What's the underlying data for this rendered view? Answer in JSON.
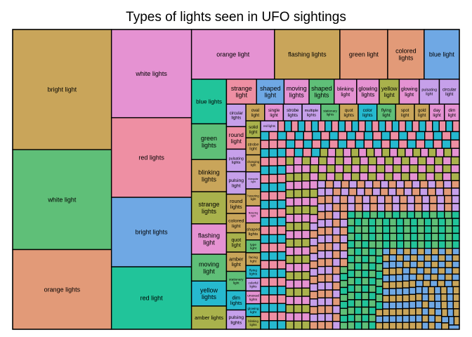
{
  "chart_data": {
    "type": "treemap",
    "title": "Types of lights seen in UFO sightings",
    "palette": {
      "gold": "#c9a55a",
      "green": "#5fbf78",
      "salmon": "#e29a78",
      "pink": "#e592d2",
      "rose": "#ee8fa3",
      "blue": "#6fa8e4",
      "teal": "#21c49a",
      "violet": "#c6a0ea",
      "olive": "#a9b24c",
      "cyan": "#26b9cf"
    },
    "items": [
      {
        "label": "bright light",
        "value": 190,
        "color": "gold"
      },
      {
        "label": "white light",
        "value": 158,
        "color": "green"
      },
      {
        "label": "orange lights",
        "value": 126,
        "color": "salmon"
      },
      {
        "label": "white lights",
        "value": 113,
        "color": "pink"
      },
      {
        "label": "red lights",
        "value": 102,
        "color": "rose"
      },
      {
        "label": "bright lights",
        "value": 89,
        "color": "blue"
      },
      {
        "label": "red light",
        "value": 80,
        "color": "teal"
      },
      {
        "label": "orange light",
        "value": 66,
        "color": "pink"
      },
      {
        "label": "flashing lights",
        "value": 52,
        "color": "gold"
      },
      {
        "label": "green light",
        "value": 38,
        "color": "salmon"
      },
      {
        "label": "blue light",
        "value": 28,
        "color": "blue"
      },
      {
        "label": "colored lights",
        "value": 29,
        "color": "salmon"
      },
      {
        "label": "blue lights",
        "value": 25,
        "color": "teal"
      },
      {
        "label": "green lights",
        "value": 20,
        "color": "green"
      },
      {
        "label": "blinking lights",
        "value": 18,
        "color": "gold"
      },
      {
        "label": "strange lights",
        "value": 18,
        "color": "olive"
      },
      {
        "label": "flashing light",
        "value": 17,
        "color": "pink"
      },
      {
        "label": "moving light",
        "value": 15,
        "color": "green"
      },
      {
        "label": "yellow lights",
        "value": 14,
        "color": "cyan"
      },
      {
        "label": "amber lights",
        "value": 13,
        "color": "olive"
      },
      {
        "label": "strange light",
        "value": 12,
        "color": "rose"
      },
      {
        "label": "shaped light",
        "value": 11,
        "color": "blue"
      },
      {
        "label": "moving lights",
        "value": 10,
        "color": "pink"
      },
      {
        "label": "shaped lights",
        "value": 10,
        "color": "green"
      },
      {
        "label": "blinking light",
        "value": 9,
        "color": "pink"
      },
      {
        "label": "glowing lights",
        "value": 9,
        "color": "pink"
      },
      {
        "label": "yellow light",
        "value": 8,
        "color": "olive"
      },
      {
        "label": "glowing light",
        "value": 8,
        "color": "pink"
      },
      {
        "label": "pulsating light",
        "value": 8,
        "color": "violet"
      },
      {
        "label": "circular light",
        "value": 8,
        "color": "violet"
      },
      {
        "label": "circular lights",
        "value": 7,
        "color": "violet"
      },
      {
        "label": "round light",
        "value": 7,
        "color": "rose"
      },
      {
        "label": "pulsating lights",
        "value": 7,
        "color": "violet"
      },
      {
        "label": "pulsing light",
        "value": 7,
        "color": "violet"
      },
      {
        "label": "round lights",
        "value": 6,
        "color": "gold"
      },
      {
        "label": "colored light",
        "value": 6,
        "color": "gold"
      },
      {
        "label": "quot light",
        "value": 6,
        "color": "olive"
      },
      {
        "label": "amber light",
        "value": 6,
        "color": "gold"
      },
      {
        "label": "stationary light",
        "value": 6,
        "color": "green"
      },
      {
        "label": "dim lights",
        "value": 6,
        "color": "cyan"
      },
      {
        "label": "pulsing lights",
        "value": 6,
        "color": "violet"
      },
      {
        "label": "oval light",
        "value": 5,
        "color": "gold"
      },
      {
        "label": "single light",
        "value": 5,
        "color": "pink"
      },
      {
        "label": "strobe lights",
        "value": 5,
        "color": "violet"
      },
      {
        "label": "multiple lights",
        "value": 5,
        "color": "violet"
      },
      {
        "label": "stationary lights",
        "value": 5,
        "color": "green"
      },
      {
        "label": "quot lights",
        "value": 5,
        "color": "gold"
      },
      {
        "label": "color lights",
        "value": 5,
        "color": "cyan"
      },
      {
        "label": "flying light",
        "value": 5,
        "color": "green"
      },
      {
        "label": "spot light",
        "value": 5,
        "color": "gold"
      },
      {
        "label": "gold light",
        "value": 4,
        "color": "gold"
      },
      {
        "label": "day light",
        "value": 4,
        "color": "pink"
      },
      {
        "label": "dim light",
        "value": 4,
        "color": "pink"
      },
      {
        "label": "solid light",
        "value": 4,
        "color": "olive"
      },
      {
        "label": "strobe light",
        "value": 4,
        "color": "gold"
      },
      {
        "label": "changing light",
        "value": 4,
        "color": "gold"
      },
      {
        "label": "triangular light",
        "value": 4,
        "color": "violet"
      },
      {
        "label": "hovering light",
        "value": 4,
        "color": "gold"
      },
      {
        "label": "flickering light",
        "value": 4,
        "color": "pink"
      },
      {
        "label": "shaped lights",
        "value": 4,
        "color": "gold"
      },
      {
        "label": "type light",
        "value": 3,
        "color": "green"
      },
      {
        "label": "facing light",
        "value": 3,
        "color": "gold"
      },
      {
        "label": "flying lights",
        "value": 3,
        "color": "cyan"
      },
      {
        "label": "colorful lights",
        "value": 3,
        "color": "violet"
      },
      {
        "label": "unusual lights",
        "value": 3,
        "color": "pink"
      },
      {
        "label": "glowing light",
        "value": 3,
        "color": "cyan"
      },
      {
        "label": "blinking lights",
        "value": 3,
        "color": "olive"
      },
      {
        "label": "red lights",
        "value": 3,
        "color": "violet"
      }
    ],
    "remainder": {
      "value": 660,
      "count": 700,
      "colors": [
        "gold",
        "green",
        "salmon",
        "pink",
        "rose",
        "blue",
        "teal",
        "violet",
        "olive",
        "cyan"
      ]
    }
  }
}
